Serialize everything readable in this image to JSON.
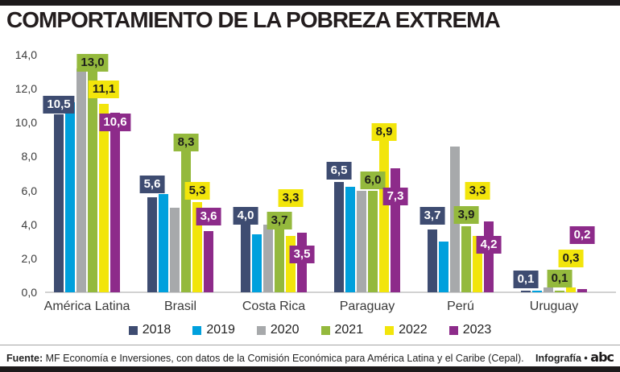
{
  "title": "COMPORTAMIENTO DE LA POBREZA EXTREMA",
  "colors": {
    "bar_2018": "#3E4C71",
    "bar_2019": "#00A0DD",
    "bar_2020": "#A7A9AB",
    "bar_2021": "#94B93D",
    "bar_2022": "#F2E50B",
    "bar_2023": "#8D2B8A",
    "frame_bars": "#1d1a1b",
    "baseline": "#d2d2d2"
  },
  "chart_data": {
    "type": "bar",
    "title": "Comportamiento de la pobreza extrema",
    "ylabel": "",
    "xlabel": "",
    "ylim": [
      0,
      14
    ],
    "grid": false,
    "legend_position": "bottom",
    "y_ticks": [
      {
        "value": 0,
        "label": "0,0"
      },
      {
        "value": 2,
        "label": "2,0"
      },
      {
        "value": 4,
        "label": "4,0"
      },
      {
        "value": 6,
        "label": "6,0"
      },
      {
        "value": 8,
        "label": "8,0"
      },
      {
        "value": 10,
        "label": "10,0"
      },
      {
        "value": 12,
        "label": "12,0"
      },
      {
        "value": 14,
        "label": "14,0"
      }
    ],
    "categories": [
      "América Latina",
      "Brasil",
      "Costa Rica",
      "Paraguay",
      "Perú",
      "Uruguay"
    ],
    "series": [
      {
        "name": "2018",
        "color": "#3E4C71",
        "label_text_color": "#ffffff",
        "values": [
          10.5,
          5.6,
          4.0,
          6.5,
          3.7,
          0.1
        ],
        "labels": [
          "10,5",
          "5,6",
          "4,0",
          "6,5",
          "3,7",
          "0,1"
        ],
        "label_dy": [
          1,
          5,
          0,
          3,
          6,
          3
        ]
      },
      {
        "name": "2019",
        "color": "#00A0DD",
        "label_text_color": "#ffffff",
        "values": [
          11.2,
          5.8,
          3.4,
          6.2,
          3.0,
          0.1
        ],
        "labels": [
          null,
          null,
          null,
          null,
          null,
          null
        ],
        "label_dy": [
          0,
          0,
          0,
          0,
          0,
          0
        ]
      },
      {
        "name": "2020",
        "color": "#A7A9AB",
        "label_text_color": "#1d1d1b",
        "values": [
          13.2,
          5.0,
          4.0,
          6.0,
          8.6,
          0.3
        ],
        "labels": [
          null,
          null,
          null,
          null,
          null,
          null
        ],
        "label_dy": [
          0,
          0,
          0,
          0,
          0,
          0
        ]
      },
      {
        "name": "2021",
        "color": "#94B93D",
        "label_text_color": "#1d1d1b",
        "values": [
          13.0,
          8.3,
          3.7,
          6.0,
          3.9,
          0.1
        ],
        "labels": [
          "13,0",
          "8,3",
          "3,7",
          "6,0",
          "3,9",
          "0,1"
        ],
        "label_dy": [
          0,
          0,
          0,
          2,
          3,
          4
        ]
      },
      {
        "name": "2022",
        "color": "#F2E50B",
        "label_text_color": "#1d1d1b",
        "values": [
          11.1,
          5.3,
          3.3,
          8.9,
          3.3,
          0.3
        ],
        "labels": [
          "11,1",
          "5,3",
          "3,3",
          "8,9",
          "3,3",
          "0,3"
        ],
        "label_dy": [
          7,
          3,
          36,
          0,
          45,
          25
        ]
      },
      {
        "name": "2023",
        "color": "#8D2B8A",
        "label_text_color": "#ffffff",
        "values": [
          10.6,
          3.6,
          3.5,
          7.3,
          4.2,
          0.2
        ],
        "labels": [
          "10,6",
          "3,6",
          "3,5",
          "7,3",
          "4,2",
          "0,2"
        ],
        "label_dy": [
          -23,
          7,
          -38,
          -46,
          -40,
          56
        ]
      }
    ]
  },
  "legend": [
    {
      "label": "2018",
      "color": "#3E4C71"
    },
    {
      "label": "2019",
      "color": "#00A0DD"
    },
    {
      "label": "2020",
      "color": "#A7A9AB"
    },
    {
      "label": "2021",
      "color": "#94B93D"
    },
    {
      "label": "2022",
      "color": "#F2E50B"
    },
    {
      "label": "2023",
      "color": "#8D2B8A"
    }
  ],
  "footer": {
    "source_label": "Fuente:",
    "source_text": " MF Economía e Inversiones, con datos de la Comisión Económica para América Latina y el Caribe (Cepal).",
    "credit_text": "Infografía •",
    "logo_text": "abc"
  }
}
